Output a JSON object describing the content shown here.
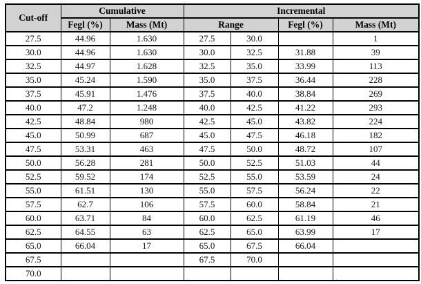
{
  "colors": {
    "header_bg": "#d2d2d2",
    "border": "#000000",
    "text": "#141414",
    "page_bg": "#ffffff"
  },
  "table": {
    "col_groups": {
      "cutoff": "Cut-off",
      "cumulative": "Cumulative",
      "incremental": "Incremental"
    },
    "sub_headers": {
      "cum_fegl": "Fegl (%)",
      "cum_mass": "Mass (Mt)",
      "range": "Range",
      "inc_fegl": "Fegl (%)",
      "inc_mass": "Mass (Mt)"
    },
    "columns": [
      "Cut-off",
      "Cumulative Fegl (%)",
      "Cumulative Mass (Mt)",
      "Range low",
      "Range high",
      "Incremental Fegl (%)",
      "Incremental Mass (Mt)"
    ],
    "rows": [
      [
        "27.5",
        "44.96",
        "1.630",
        "27.5",
        "30.0",
        "",
        "1"
      ],
      [
        "30.0",
        "44.96",
        "1.630",
        "30.0",
        "32.5",
        "31.88",
        "39"
      ],
      [
        "32.5",
        "44.97",
        "1.628",
        "32.5",
        "35.0",
        "33.99",
        "113"
      ],
      [
        "35.0",
        "45.24",
        "1.590",
        "35.0",
        "37.5",
        "36.44",
        "228"
      ],
      [
        "37.5",
        "45.91",
        "1.476",
        "37.5",
        "40.0",
        "38.84",
        "269"
      ],
      [
        "40.0",
        "47.2",
        "1.248",
        "40.0",
        "42.5",
        "41.22",
        "293"
      ],
      [
        "42.5",
        "48.84",
        "980",
        "42.5",
        "45.0",
        "43.82",
        "224"
      ],
      [
        "45.0",
        "50.99",
        "687",
        "45.0",
        "47.5",
        "46.18",
        "182"
      ],
      [
        "47.5",
        "53.31",
        "463",
        "47.5",
        "50.0",
        "48.72",
        "107"
      ],
      [
        "50.0",
        "56.28",
        "281",
        "50.0",
        "52.5",
        "51.03",
        "44"
      ],
      [
        "52.5",
        "59.52",
        "174",
        "52.5",
        "55.0",
        "53.59",
        "24"
      ],
      [
        "55.0",
        "61.51",
        "130",
        "55.0",
        "57.5",
        "56.24",
        "22"
      ],
      [
        "57.5",
        "62.7",
        "106",
        "57.5",
        "60.0",
        "58.84",
        "21"
      ],
      [
        "60.0",
        "63.71",
        "84",
        "60.0",
        "62.5",
        "61.19",
        "46"
      ],
      [
        "62.5",
        "64.55",
        "63",
        "62.5",
        "65.0",
        "63.99",
        "17"
      ],
      [
        "65.0",
        "66.04",
        "17",
        "65.0",
        "67.5",
        "66.04",
        ""
      ],
      [
        "67.5",
        "",
        "",
        "67.5",
        "70.0",
        "",
        ""
      ],
      [
        "70.0",
        "",
        "",
        "",
        "",
        "",
        ""
      ]
    ]
  }
}
